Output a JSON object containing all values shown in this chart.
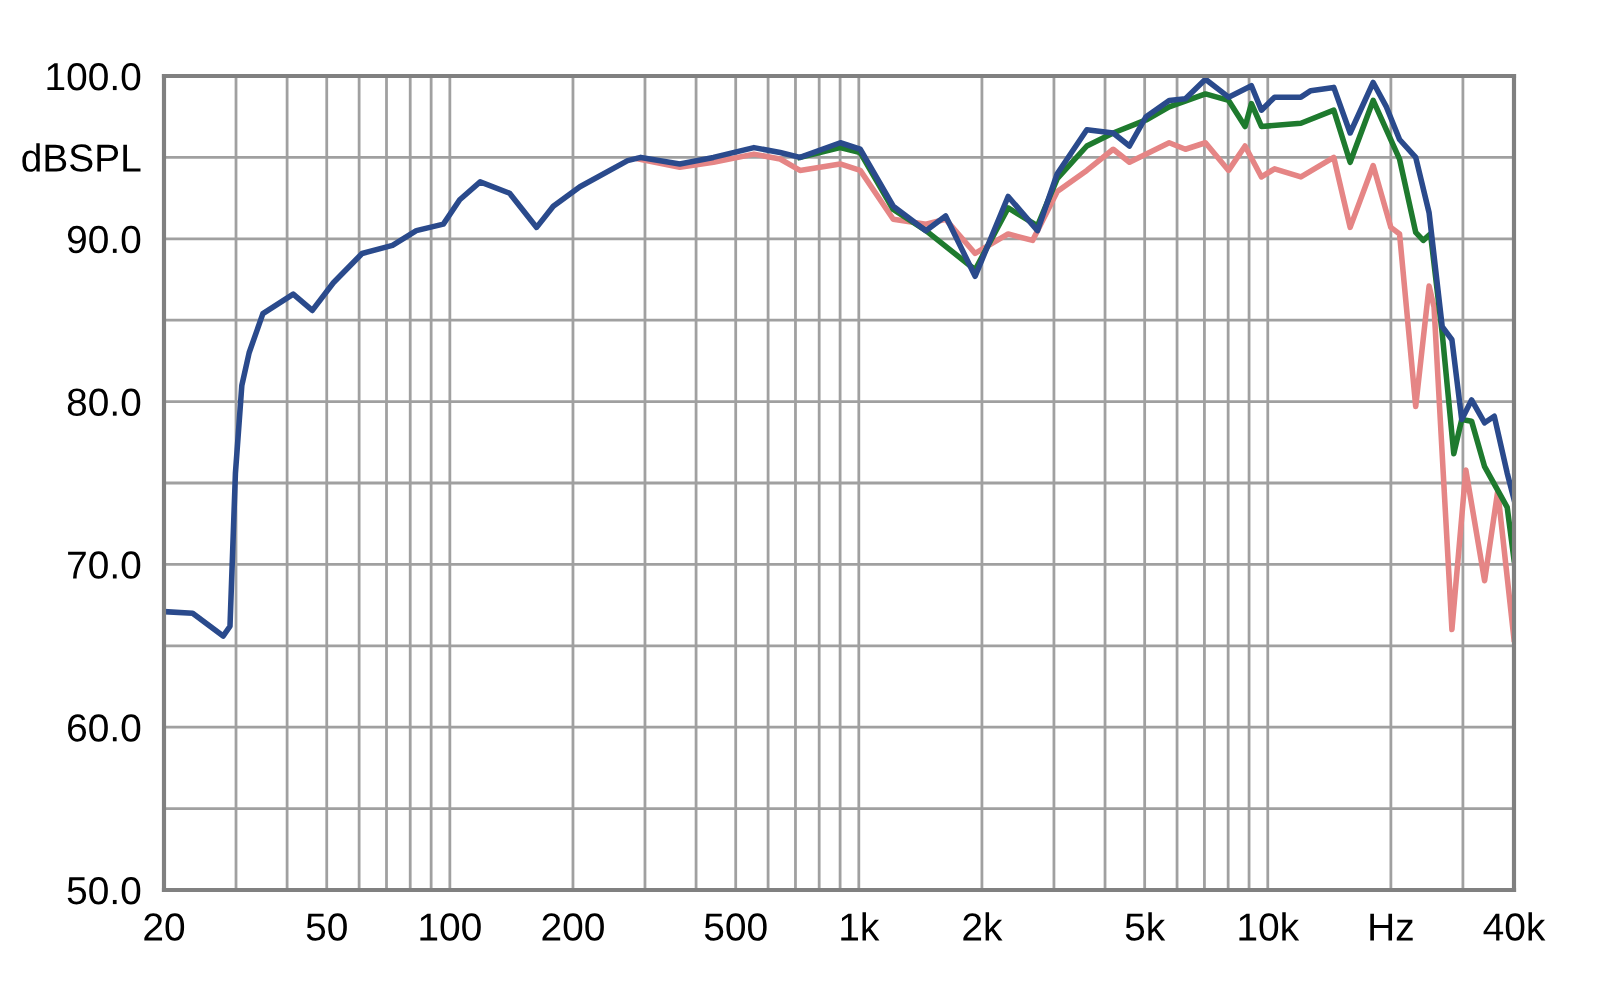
{
  "chart_data": {
    "type": "line",
    "log": "x",
    "grid": true,
    "marker": "none",
    "line_style": "solid",
    "xlim": [
      20,
      40000
    ],
    "ylim": [
      50,
      100
    ],
    "xticks": [
      20,
      {
        "value": 30,
        "label": null
      },
      {
        "value": 40,
        "label": null
      },
      50,
      {
        "value": 60,
        "label": null
      },
      {
        "value": 70,
        "label": null
      },
      {
        "value": 80,
        "label": null
      },
      {
        "value": 90,
        "label": null
      },
      100,
      200,
      {
        "value": 300,
        "label": null
      },
      {
        "value": 400,
        "label": null
      },
      500,
      {
        "value": 600,
        "label": null
      },
      {
        "value": 700,
        "label": null
      },
      {
        "value": 800,
        "label": null
      },
      {
        "value": 900,
        "label": null
      },
      {
        "value": 1000,
        "label": "1k"
      },
      {
        "value": 2000,
        "label": "2k"
      },
      {
        "value": 3000,
        "label": null
      },
      {
        "value": 4000,
        "label": null
      },
      {
        "value": 5000,
        "label": "5k"
      },
      {
        "value": 6000,
        "label": null
      },
      {
        "value": 7000,
        "label": null
      },
      {
        "value": 8000,
        "label": null
      },
      {
        "value": 9000,
        "label": null
      },
      {
        "value": 10000,
        "label": "10k"
      },
      {
        "value": 20000,
        "label": "Hz"
      },
      {
        "value": 30000,
        "label": null
      },
      {
        "value": 40000,
        "label": "40k"
      }
    ],
    "yticks": [
      {
        "value": 50,
        "label": "50.0"
      },
      {
        "value": 55,
        "label": null
      },
      {
        "value": 60,
        "label": "60.0"
      },
      {
        "value": 65,
        "label": null
      },
      {
        "value": 70,
        "label": "70.0"
      },
      {
        "value": 75,
        "label": null
      },
      {
        "value": 80,
        "label": "80.0"
      },
      {
        "value": 85,
        "label": null
      },
      {
        "value": 90,
        "label": "90.0"
      },
      {
        "value": 95,
        "label": "dBSPL"
      },
      {
        "value": 100,
        "label": "100.0"
      }
    ],
    "series": [
      {
        "color": "#e58585",
        "x": [
          290,
          365,
          441,
          554,
          642,
          718,
          900,
          1008,
          1214,
          1459,
          1630,
          1925,
          2318,
          2660,
          3056,
          3610,
          4187,
          4590,
          5740,
          6290,
          7040,
          8020,
          8800,
          9650,
          10390,
          12050,
          14500,
          15900,
          18100,
          20000,
          21000,
          23000,
          24800,
          25500,
          28200,
          30500,
          33900,
          36500,
          40000
        ],
        "values": [
          94.9,
          94.4,
          94.7,
          95.2,
          94.9,
          94.2,
          94.6,
          94.2,
          91.2,
          90.9,
          91.2,
          89.1,
          90.3,
          89.9,
          92.9,
          94.2,
          95.5,
          94.7,
          95.9,
          95.5,
          95.9,
          94.2,
          95.7,
          93.8,
          94.3,
          93.8,
          95.0,
          90.7,
          94.5,
          90.7,
          90.3,
          79.7,
          87.1,
          85.8,
          66.0,
          75.8,
          69.0,
          74.5,
          65.4
        ]
      },
      {
        "color": "#1e7a2e",
        "x": [
          718,
          900,
          1008,
          1214,
          1459,
          1925,
          2318,
          2735,
          3056,
          3610,
          4187,
          5040,
          5740,
          7040,
          8020,
          8800,
          9120,
          9650,
          12050,
          14500,
          15900,
          18100,
          21000,
          23000,
          24000,
          25000,
          26700,
          28500,
          29800,
          31500,
          33900,
          38500,
          40000
        ],
        "values": [
          95.0,
          95.6,
          95.3,
          91.8,
          90.5,
          88.1,
          91.9,
          90.8,
          93.7,
          95.7,
          96.5,
          97.3,
          98.1,
          98.9,
          98.5,
          96.9,
          98.3,
          96.9,
          97.1,
          97.9,
          94.7,
          98.5,
          94.9,
          90.4,
          89.9,
          90.3,
          84.2,
          76.8,
          78.9,
          78.8,
          76.0,
          73.5,
          70.3
        ]
      },
      {
        "color": "#2a4a8c",
        "x": [
          20,
          23.5,
          27.9,
          29,
          29.9,
          31,
          32.3,
          34.9,
          41.4,
          46.1,
          51.9,
          61,
          72.4,
          82.8,
          96.4,
          105.7,
          118.6,
          140,
          163,
          179,
          208,
          272,
          293,
          365,
          441,
          554,
          642,
          718,
          901,
          1008,
          1214,
          1459,
          1630,
          1925,
          2318,
          2735,
          3056,
          3610,
          4187,
          4590,
          5040,
          5740,
          6290,
          7040,
          8020,
          9120,
          9650,
          10390,
          12050,
          12740,
          14500,
          15900,
          18100,
          19500,
          21000,
          23000,
          24800,
          26700,
          28200,
          29800,
          31500,
          33900,
          35800,
          38500,
          40000
        ],
        "values": [
          67.1,
          67.0,
          65.6,
          66.2,
          75.6,
          81.0,
          83.0,
          85.4,
          86.6,
          85.6,
          87.3,
          89.1,
          89.6,
          90.5,
          90.9,
          92.4,
          93.5,
          92.8,
          90.7,
          92.0,
          93.2,
          94.8,
          95.0,
          94.6,
          95.0,
          95.6,
          95.3,
          95.0,
          95.9,
          95.5,
          92.0,
          90.5,
          91.4,
          87.7,
          92.6,
          90.5,
          94.0,
          96.7,
          96.5,
          95.7,
          97.5,
          98.5,
          98.6,
          99.8,
          98.7,
          99.4,
          97.9,
          98.7,
          98.7,
          99.1,
          99.3,
          96.5,
          99.6,
          98.1,
          96.1,
          95.0,
          91.6,
          84.6,
          83.8,
          78.9,
          80.1,
          78.7,
          79.1,
          75.6,
          74.0
        ]
      }
    ]
  }
}
